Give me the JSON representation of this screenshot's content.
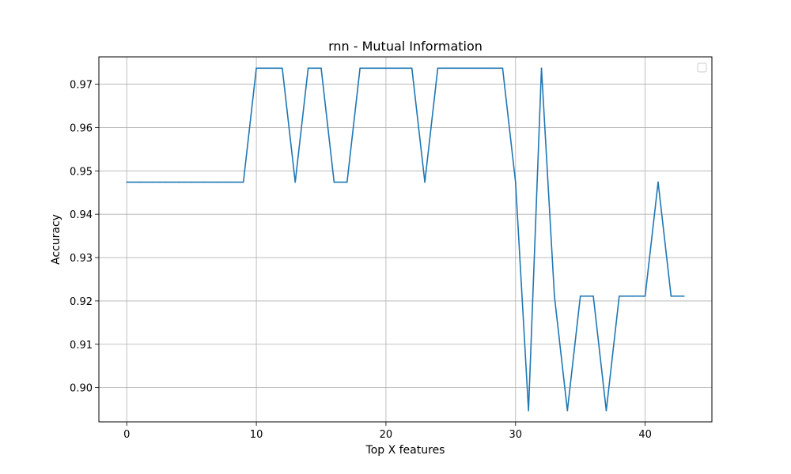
{
  "chart_data": {
    "type": "line",
    "title": "rnn - Mutual Information",
    "xlabel": "Top X features",
    "ylabel": "Accuracy",
    "xlim": [
      -2.15,
      45.15
    ],
    "ylim": [
      0.8921,
      0.9763
    ],
    "xticks": [
      0,
      10,
      20,
      30,
      40
    ],
    "yticks": [
      0.9,
      0.91,
      0.92,
      0.93,
      0.94,
      0.95,
      0.96,
      0.97
    ],
    "ytick_labels": [
      "0.90",
      "0.91",
      "0.92",
      "0.93",
      "0.94",
      "0.95",
      "0.96",
      "0.97"
    ],
    "grid": true,
    "legend": "top-right",
    "line_color": "#1f77b4",
    "series": [
      {
        "x": [
          0,
          1,
          2,
          3,
          4,
          5,
          6,
          7,
          8,
          9,
          10,
          11,
          12,
          13,
          14,
          15,
          16,
          17,
          18,
          19,
          20,
          21,
          22,
          23,
          24,
          25,
          26,
          27,
          28,
          29,
          30,
          31,
          32,
          33,
          34,
          35,
          36,
          37,
          38,
          39,
          40,
          41,
          42,
          43
        ],
        "values": [
          0.9474,
          0.9474,
          0.9474,
          0.9474,
          0.9474,
          0.9474,
          0.9474,
          0.9474,
          0.9474,
          0.9474,
          0.9737,
          0.9737,
          0.9737,
          0.9474,
          0.9737,
          0.9737,
          0.9474,
          0.9474,
          0.9737,
          0.9737,
          0.9737,
          0.9737,
          0.9737,
          0.9474,
          0.9737,
          0.9737,
          0.9737,
          0.9737,
          0.9737,
          0.9737,
          0.9474,
          0.8947,
          0.9737,
          0.9211,
          0.8947,
          0.9211,
          0.9211,
          0.8947,
          0.9211,
          0.9211,
          0.9211,
          0.9474,
          0.9211,
          0.9211
        ]
      }
    ]
  }
}
